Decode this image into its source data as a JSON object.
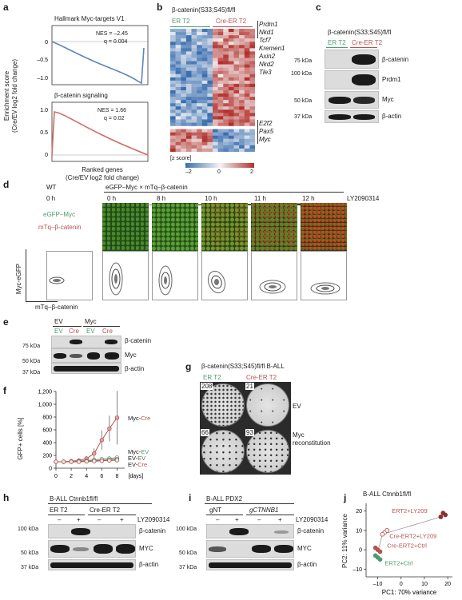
{
  "panels": {
    "a": "a",
    "b": "b",
    "c": "c",
    "d": "d",
    "e": "e",
    "f": "f",
    "g": "g",
    "h": "h",
    "i": "i",
    "j": "j"
  },
  "a": {
    "ylabel_1": "Enrichment score",
    "ylabel_2": "(Cre/EV log2 fold change)",
    "top_title": "Hallmark Myc-targets V1",
    "top_nes": "NES = –2.45",
    "top_q": "q = 0.004",
    "top_ticks": [
      "0",
      "–0.5",
      "–1.0"
    ],
    "bottom_title": "β-catenin signaling",
    "bottom_nes": "NES = 1.66",
    "bottom_q": "q = 0.02",
    "bottom_ticks": [
      "1.0",
      "0.5",
      "0"
    ],
    "xlabel_1": "Ranked genes",
    "xlabel_2": "(Cre/EV log2 fold change)",
    "top_line_color": "#5b87b8",
    "bottom_line_color": "#d06b6b"
  },
  "b": {
    "title": "β-catenin(S33;S45)fl/fl",
    "group_left": "ER T2",
    "group_right": "Cre-ER T2",
    "genes_up": [
      "Prdm1",
      "Nkd1",
      "Tcf7",
      "Kremen1",
      "Axin2",
      "Nkd2",
      "Tle3"
    ],
    "genes_down": [
      "E2f2",
      "Pax5",
      "Myc"
    ],
    "zscore_label": "[z score]",
    "zscore_ticks": [
      "–2",
      "0",
      "2"
    ],
    "color_low": "#3a6fb0",
    "color_mid": "#f4f4f4",
    "color_high": "#b2302c"
  },
  "c": {
    "title": "β-catenin(S33;S45)fl/fl",
    "lane_left": "ER T2",
    "lane_right": "Cre-ER T2",
    "markers": [
      "75 kDa",
      "100 kDa",
      "50 kDa",
      "37 kDa"
    ],
    "bands": [
      "β-catenin",
      "Prdm1",
      "Myc",
      "β-actin"
    ]
  },
  "d": {
    "wt": "WT",
    "genotype": "eGFP–Myc × mTq–β-catenin",
    "timepoints": [
      "0 h",
      "0 h",
      "8 h",
      "10 h",
      "11 h",
      "12 h"
    ],
    "treatment": "LY2090314",
    "channel_green": "eGFP–Myc",
    "channel_red": "mTq–β-catenin",
    "flow_ylabel": "Myc-eGFP",
    "flow_xlabel": "mTq–β-catenin"
  },
  "e": {
    "groups": [
      "EV",
      "Myc"
    ],
    "lanes": [
      "EV",
      "Cre",
      "EV",
      "Cre"
    ],
    "markers": [
      "75 kDa",
      "50 kDa",
      "37 kDa"
    ],
    "bands": [
      "β-catenin",
      "Myc",
      "β-actin"
    ]
  },
  "f": {
    "ylabel": "GFP+ cells [%]",
    "yticks": [
      "1,200",
      "1,000",
      "800",
      "600",
      "400",
      "200",
      "0"
    ],
    "xticks": [
      "0",
      "2",
      "4",
      "6",
      "8"
    ],
    "xunit": "[days]",
    "series_labels": [
      "Myc-Cre",
      "Myc-EV",
      "EV-EV",
      "EV-Cre"
    ]
  },
  "g": {
    "title": "β-catenin(S33;S45)fl/fl B-ALL",
    "col_left": "ER T2",
    "col_right": "Cre-ER T2",
    "counts": [
      "208",
      "21",
      "66",
      "93"
    ],
    "row_labels": [
      "EV",
      "Myc",
      "reconstitution"
    ]
  },
  "h": {
    "title": "B-ALL Ctnnb1fl/fl",
    "group_left": "ER T2",
    "group_right": "Cre-ER T2",
    "treatment": "LY2090314",
    "signs": [
      "–",
      "+",
      "–",
      "+"
    ],
    "markers": [
      "100 kDa",
      "50 kDa",
      "37 kDa"
    ],
    "bands": [
      "β-catenin",
      "MYC",
      "β-actin"
    ]
  },
  "i": {
    "title": "B-ALL PDX2",
    "group_left": "gNT",
    "group_right": "gCTNNB1",
    "treatment": "LY2090314",
    "signs": [
      "–",
      "+",
      "–",
      "+"
    ],
    "markers": [
      "100 kDa",
      "50 kDa",
      "37 kDa"
    ],
    "bands": [
      "β-catenin",
      "MYC",
      "β-actin"
    ]
  },
  "j": {
    "title": "B-ALL Ctnnb1fl/fl",
    "ylabel": "PC2: 11% variance",
    "xlabel": "PC1: 70% variance",
    "yticks": [
      "20",
      "10",
      "0",
      "–10"
    ],
    "xticks": [
      "–10",
      "0",
      "10",
      "20"
    ],
    "labels": [
      "ERT2+LY209",
      "Cre-ERT2+LY209",
      "Cre-ERT2+Ctrl",
      "ERT2+Ctrl"
    ]
  },
  "chart_data": [
    {
      "type": "line",
      "title": "",
      "xlabel": "[days]",
      "ylabel": "GFP+ cells [%]",
      "x": [
        0,
        1,
        2,
        3,
        4,
        5,
        6,
        7,
        8
      ],
      "ylim": [
        0,
        1200
      ],
      "series": [
        {
          "name": "Myc-Cre",
          "values": [
            100,
            100,
            110,
            120,
            150,
            230,
            440,
            620,
            790
          ],
          "color": "#b5534f"
        },
        {
          "name": "Myc-EV",
          "values": [
            100,
            100,
            105,
            110,
            120,
            130,
            140,
            150,
            165
          ],
          "color": "#4e9b6e"
        },
        {
          "name": "EV-EV",
          "values": [
            100,
            100,
            100,
            105,
            110,
            115,
            120,
            130,
            140
          ],
          "color": "#777777"
        },
        {
          "name": "EV-Cre",
          "values": [
            100,
            100,
            100,
            100,
            105,
            110,
            115,
            120,
            125
          ],
          "color": "#b5534f"
        }
      ]
    },
    {
      "type": "scatter",
      "title": "B-ALL Ctnnb1fl/fl",
      "xlabel": "PC1: 70% variance",
      "ylabel": "PC2: 11% variance",
      "xlim": [
        -15,
        22
      ],
      "ylim": [
        -14,
        24
      ],
      "series": [
        {
          "name": "ERT2+LY209",
          "x": [
            17,
            18,
            19
          ],
          "y": [
            17,
            19,
            18
          ],
          "color": "#8b2e2e"
        },
        {
          "name": "Cre-ERT2+LY209",
          "x": [
            -7,
            -8,
            -6
          ],
          "y": [
            9,
            8,
            10
          ],
          "color": "#b5534f"
        },
        {
          "name": "Cre-ERT2+Ctrl",
          "x": [
            -10,
            -9,
            -11
          ],
          "y": [
            0,
            -1,
            1
          ],
          "color": "#b5534f"
        },
        {
          "name": "ERT2+Ctrl",
          "x": [
            -10,
            -9,
            -11
          ],
          "y": [
            -4,
            -5,
            -3
          ],
          "color": "#4e9b6e"
        }
      ]
    }
  ]
}
